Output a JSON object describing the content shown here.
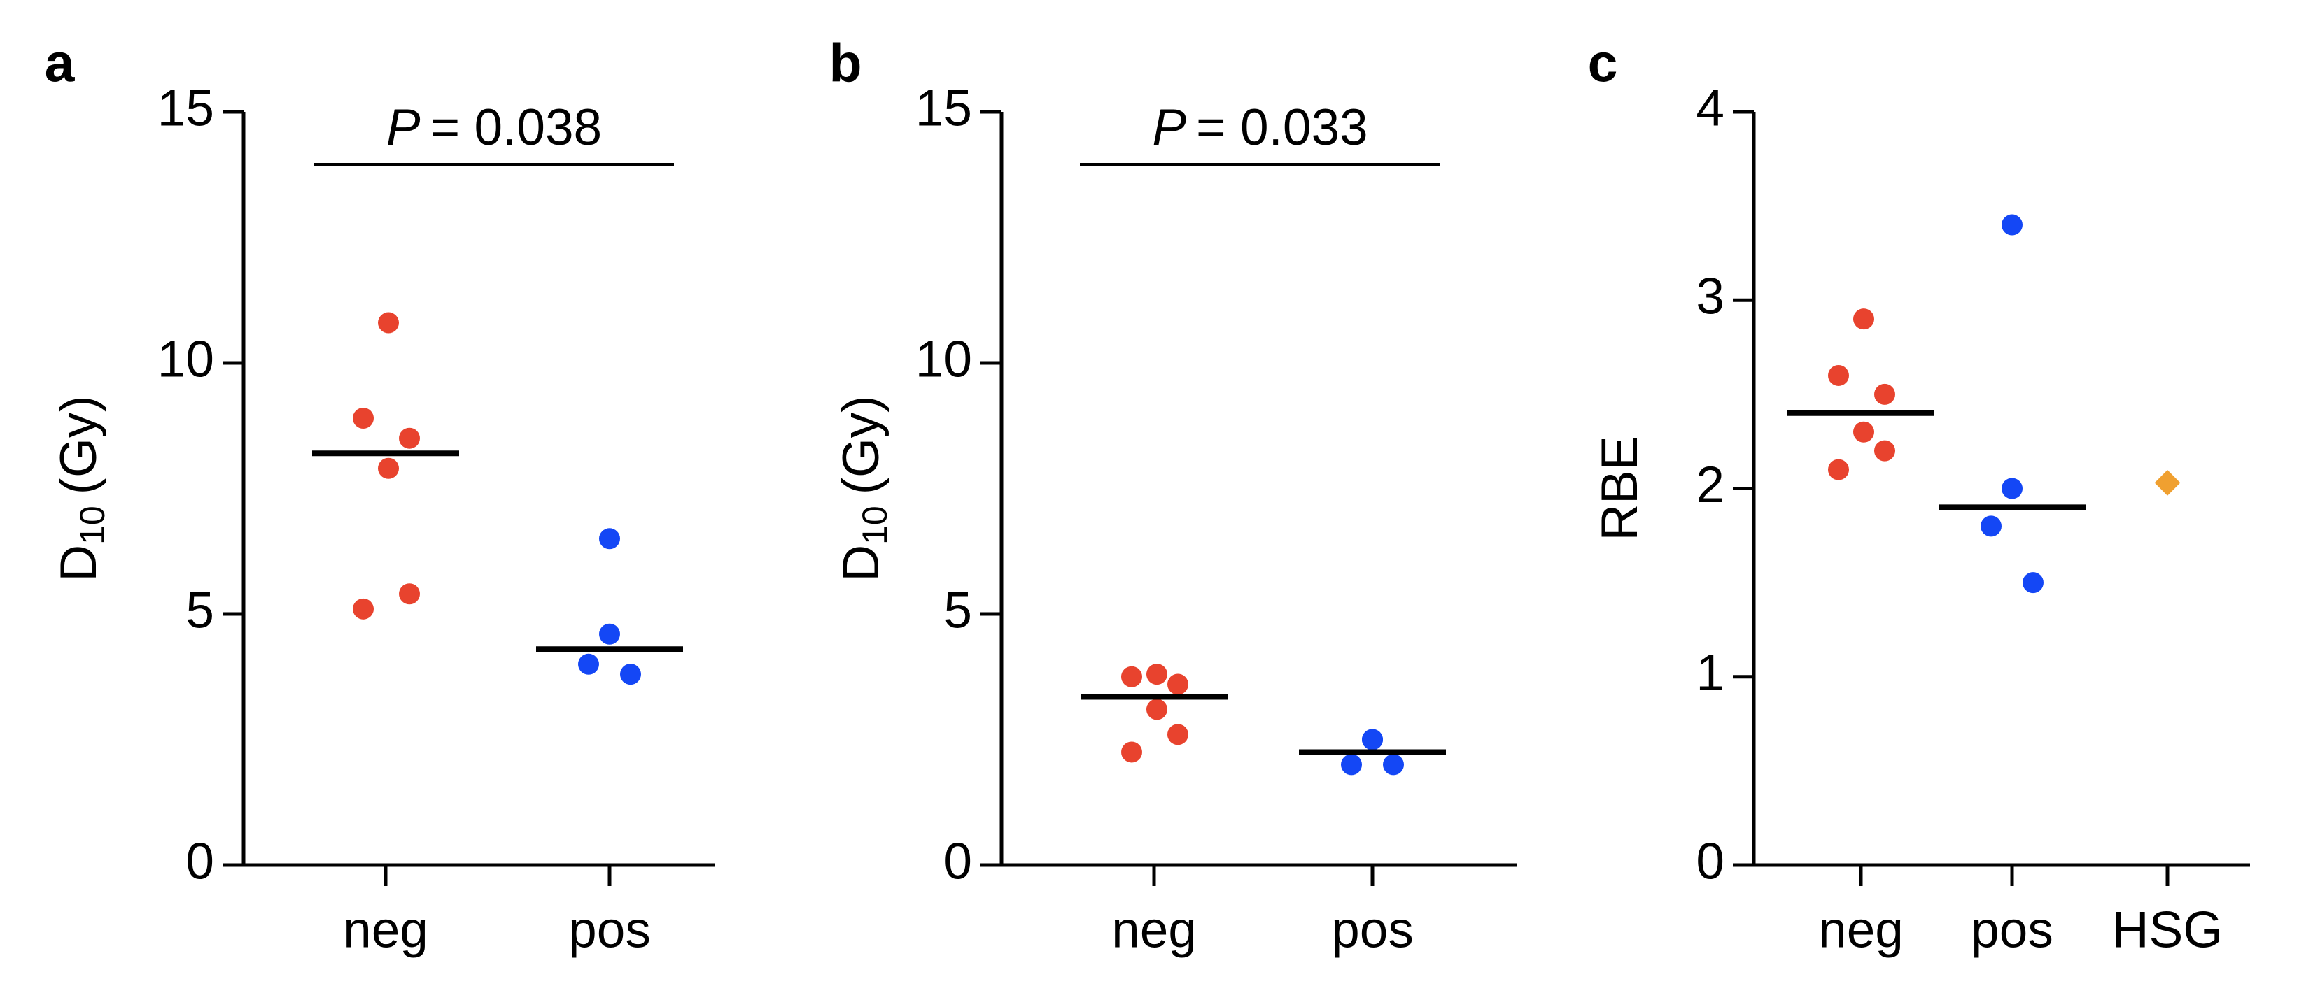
{
  "chart_data": [
    {
      "type": "strip",
      "panel_label": "a",
      "ylabel": {
        "main": "D",
        "sub": "10",
        "unit": "(Gy)"
      },
      "annotation": {
        "italic": "P",
        "text": "= 0.038"
      },
      "categories": [
        "neg",
        "pos"
      ],
      "values": [
        [
          10.8,
          8.9,
          8.5,
          7.9,
          5.4,
          5.1
        ],
        [
          6.5,
          4.6,
          4.0,
          3.8
        ]
      ],
      "medians": [
        8.2,
        4.3
      ],
      "colors": [
        "#e8432e",
        "#1447f5"
      ],
      "ylim": [
        0,
        15
      ],
      "yticks": [
        0,
        5,
        10,
        15
      ]
    },
    {
      "type": "strip",
      "panel_label": "b",
      "ylabel": {
        "main": "D",
        "sub": "10",
        "unit": "(Gy)"
      },
      "annotation": {
        "italic": "P",
        "text": "= 0.033"
      },
      "categories": [
        "neg",
        "pos"
      ],
      "values": [
        [
          3.8,
          3.75,
          3.6,
          3.1,
          2.6,
          2.25
        ],
        [
          2.5,
          2.5,
          2.0,
          2.0
        ]
      ],
      "medians": [
        3.35,
        2.25
      ],
      "colors": [
        "#e8432e",
        "#1447f5"
      ],
      "ylim": [
        0,
        15
      ],
      "yticks": [
        0,
        5,
        10,
        15
      ]
    },
    {
      "type": "strip",
      "panel_label": "c",
      "ylabel": {
        "main": "RBE"
      },
      "categories": [
        "neg",
        "pos",
        "HSG"
      ],
      "values": [
        [
          2.9,
          2.6,
          2.5,
          2.3,
          2.2,
          2.1
        ],
        [
          3.4,
          2.0,
          1.8,
          1.5
        ],
        [
          2.03
        ]
      ],
      "medians": [
        2.4,
        1.9,
        null
      ],
      "colors": [
        "#e8432e",
        "#1447f5",
        "#f0a030"
      ],
      "ylim": [
        0,
        4
      ],
      "yticks": [
        0,
        1,
        2,
        3,
        4
      ]
    }
  ]
}
